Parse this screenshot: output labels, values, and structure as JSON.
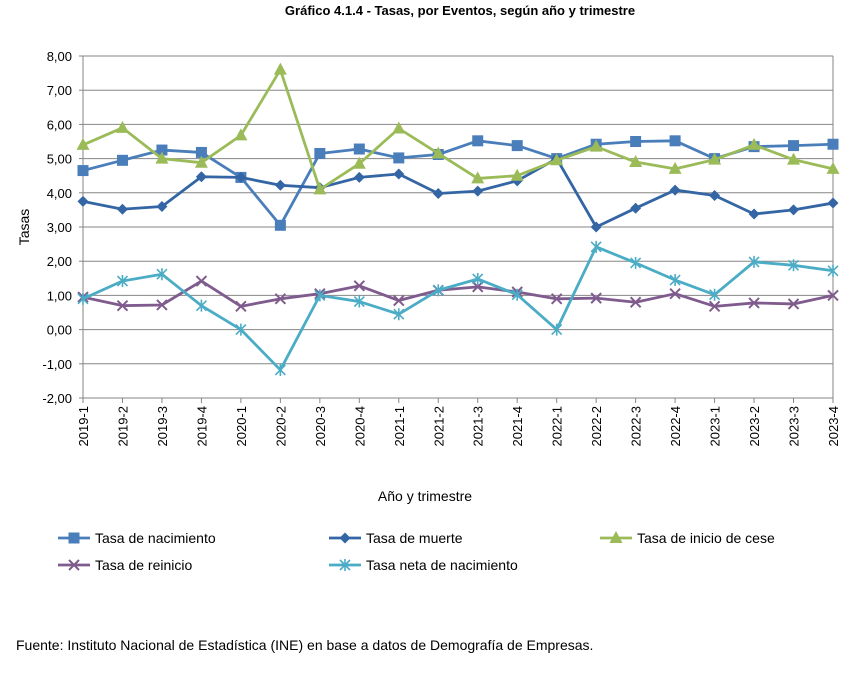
{
  "chart_data": {
    "type": "line",
    "title": "Gráfico 4.1.4 - Tasas, por Eventos, según año y trimestre",
    "xlabel": "Año y trimestre",
    "ylabel": "Tasas",
    "ylim": [
      -2,
      8
    ],
    "y_ticks": [
      "8,00",
      "7,00",
      "6,00",
      "5,00",
      "4,00",
      "3,00",
      "2,00",
      "1,00",
      "0,00",
      "-1,00",
      "-2,00"
    ],
    "y_tick_values": [
      8,
      7,
      6,
      5,
      4,
      3,
      2,
      1,
      0,
      -1,
      -2
    ],
    "grid": "horizontal",
    "legend_position": "bottom",
    "categories": [
      "2019-1",
      "2019-2",
      "2019-3",
      "2019-4",
      "2020-1",
      "2020-2",
      "2020-3",
      "2020-4",
      "2021-1",
      "2021-2",
      "2021-3",
      "2021-4",
      "2022-1",
      "2022-2",
      "2022-3",
      "2022-4",
      "2023-1",
      "2023-2",
      "2023-3",
      "2023-4"
    ],
    "series": [
      {
        "name": "Tasa de nacimiento",
        "color": "#4a7ebb",
        "marker": "square",
        "values": [
          4.65,
          4.95,
          5.25,
          5.18,
          4.45,
          3.05,
          5.15,
          5.28,
          5.02,
          5.12,
          5.52,
          5.38,
          5.0,
          5.42,
          5.5,
          5.52,
          5.0,
          5.35,
          5.38,
          5.42
        ]
      },
      {
        "name": "Tasa de muerte",
        "color": "#3465a4",
        "marker": "diamond",
        "values": [
          3.75,
          3.52,
          3.6,
          4.47,
          4.45,
          4.22,
          4.15,
          4.45,
          4.55,
          3.98,
          4.05,
          4.35,
          5.0,
          3.0,
          3.55,
          4.08,
          3.92,
          3.38,
          3.5,
          3.7
        ]
      },
      {
        "name": "Tasa de inicio de cese",
        "color": "#9bbb59",
        "marker": "triangle",
        "values": [
          5.4,
          5.9,
          5.0,
          4.88,
          5.68,
          7.6,
          4.1,
          4.85,
          5.88,
          5.15,
          4.42,
          4.5,
          4.95,
          5.35,
          4.9,
          4.7,
          4.97,
          5.4,
          4.97,
          4.7
        ]
      },
      {
        "name": "Tasa de reinicio",
        "color": "#7f5b8e",
        "marker": "x",
        "values": [
          0.95,
          0.7,
          0.72,
          1.42,
          0.68,
          0.9,
          1.05,
          1.28,
          0.85,
          1.15,
          1.25,
          1.1,
          0.9,
          0.92,
          0.8,
          1.05,
          0.68,
          0.78,
          0.75,
          1.0
        ]
      },
      {
        "name": "Tasa neta de nacimiento",
        "color": "#4bacc6",
        "marker": "star",
        "values": [
          0.9,
          1.42,
          1.62,
          0.7,
          0.0,
          -1.18,
          1.0,
          0.82,
          0.45,
          1.15,
          1.48,
          1.02,
          0.0,
          2.42,
          1.95,
          1.45,
          1.02,
          1.98,
          1.88,
          1.72
        ]
      }
    ]
  },
  "footer": {
    "source": "Fuente: Instituto Nacional de Estadística (INE) en base a datos de Demografía de Empresas."
  }
}
